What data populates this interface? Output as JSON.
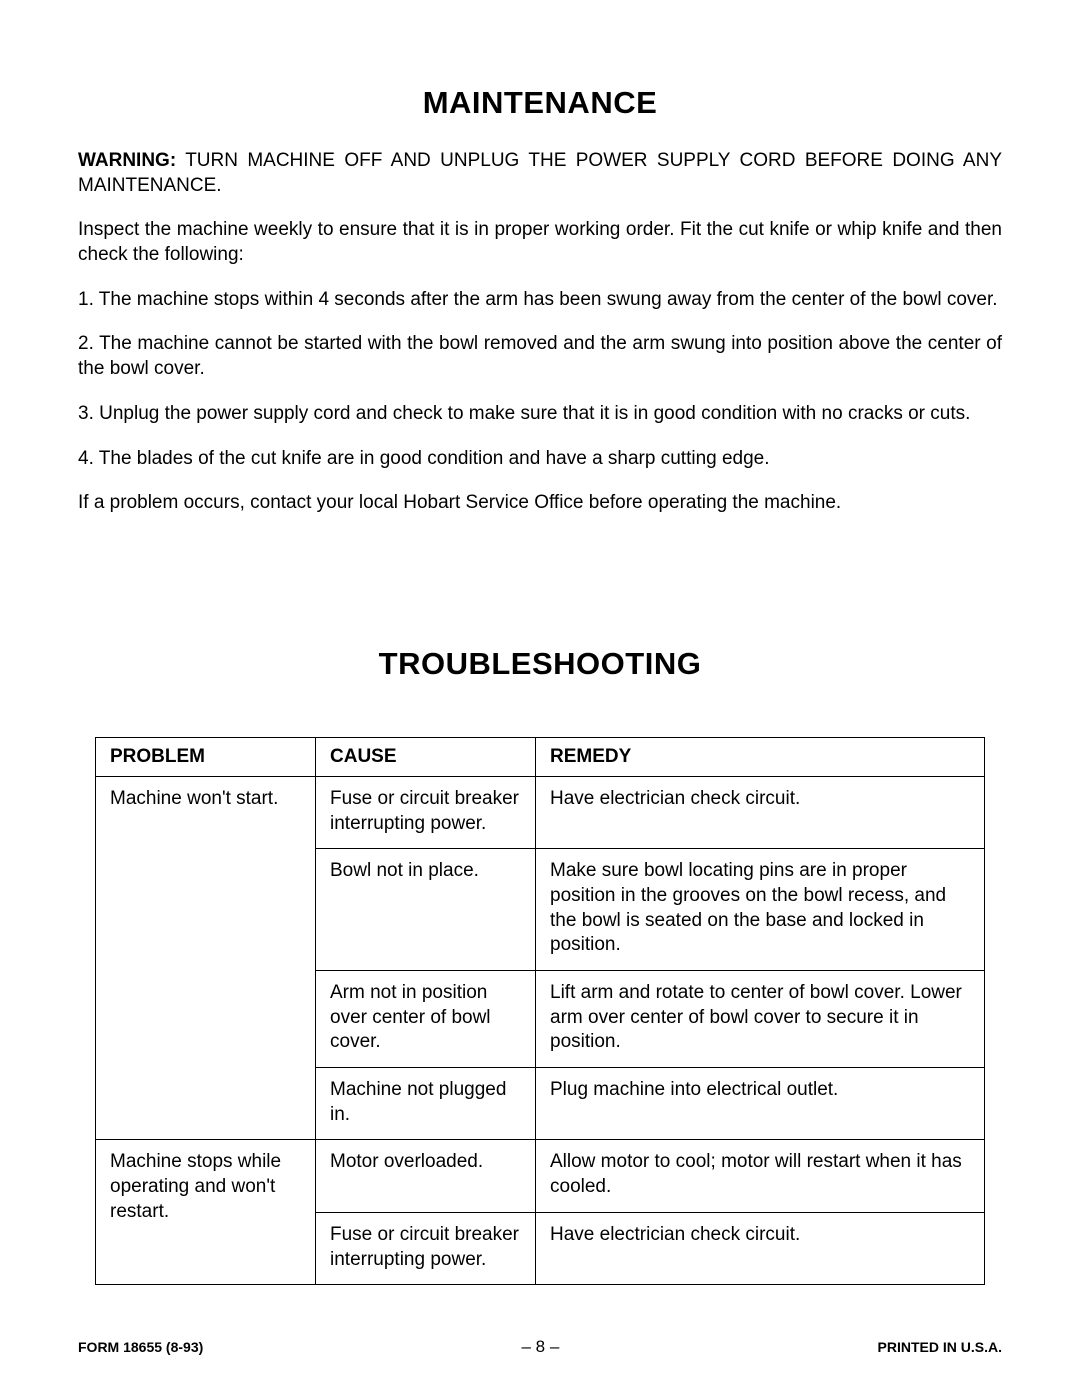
{
  "maintenance": {
    "heading": "MAINTENANCE",
    "warning_label": "WARNING:",
    "warning_text": "  TURN MACHINE OFF AND UNPLUG THE POWER SUPPLY CORD BEFORE DOING ANY MAINTENANCE.",
    "intro": "Inspect the machine weekly to ensure that it is in proper working order.  Fit the cut knife or whip knife and then check the following:",
    "items": [
      "1.  The machine stops within 4 seconds after the arm has been swung away from the center of the bowl cover.",
      "2.  The machine cannot be started with the bowl removed and the arm swung into position above the center of the bowl cover.",
      "3.  Unplug the power supply cord and check to make sure that it is in good condition with no cracks or cuts.",
      "4.  The blades of the cut knife are in good condition and have a sharp cutting edge."
    ],
    "closing": "If a problem occurs, contact your local Hobart Service Office before operating the machine."
  },
  "troubleshooting": {
    "heading": "TROUBLESHOOTING",
    "columns": [
      "PROBLEM",
      "CAUSE",
      "REMEDY"
    ],
    "groups": [
      {
        "problem": "Machine won't start.",
        "rows": [
          {
            "cause": "Fuse or circuit breaker interrupting power.",
            "remedy": "Have electrician check circuit."
          },
          {
            "cause": "Bowl not in place.",
            "remedy": "Make sure bowl locating pins are in proper position in the grooves on the bowl recess, and the bowl is seated on the base and locked in position."
          },
          {
            "cause": "Arm not in position over center of bowl cover.",
            "remedy": "Lift arm and rotate to center of bowl cover. Lower arm over center of bowl cover to secure it in position."
          },
          {
            "cause": "Machine not plugged in.",
            "remedy": "Plug machine into electrical outlet."
          }
        ]
      },
      {
        "problem": "Machine stops while operating and won't restart.",
        "rows": [
          {
            "cause": "Motor overloaded.",
            "remedy": "Allow motor to cool; motor  will restart when it has cooled."
          },
          {
            "cause": "Fuse or circuit breaker interrupting power.",
            "remedy": "Have electrician check circuit."
          }
        ]
      }
    ]
  },
  "footer": {
    "form": "FORM 18655 (8-93)",
    "page": "– 8 –",
    "printed": "PRINTED IN U.S.A."
  }
}
